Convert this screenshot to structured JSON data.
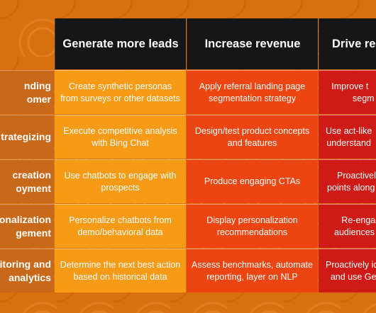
{
  "header": {
    "columns": [
      "Generate more leads",
      "Increase revenue",
      "Drive repo"
    ]
  },
  "rows": [
    {
      "label": [
        "nding",
        "omer"
      ],
      "cells": [
        "Create synthetic personas from surveys or other datasets",
        "Apply referral landing page segmentation strategy",
        "Improve t segm"
      ]
    },
    {
      "label": [
        "trategizing"
      ],
      "cells": [
        "Execute competitive analysis with Bing Chat",
        "Design/test product concepts and features",
        "Use act-like understand"
      ]
    },
    {
      "label": [
        "creation",
        "oyment"
      ],
      "cells": [
        "Use chatbots to engage with prospects",
        "Produce engaging CTAs",
        "Proactively points along c"
      ]
    },
    {
      "label": [
        "sonalization",
        "gement"
      ],
      "cells": [
        "Personalize chatbots from demo/behavioral data",
        "Display personalization recommendations",
        "Re-engag audiences w"
      ]
    },
    {
      "label": [
        "itoring and",
        "analytics"
      ],
      "cells": [
        "Determine the next best action based on historical data",
        "Assess benchmarks, automate reporting, layer on NLP",
        "Proactively ide and use Gen"
      ]
    }
  ],
  "colors": {
    "header_bg": "#161616",
    "col1_bg": "#f79a16",
    "col2_bg": "#ec4511",
    "col3_bg": "#cf1a16",
    "row_label_bg": "#c8681a",
    "page_bg": "#d9700f"
  }
}
